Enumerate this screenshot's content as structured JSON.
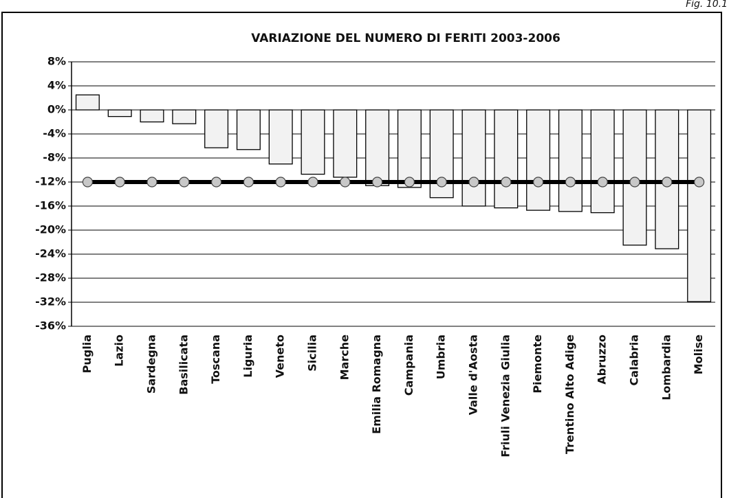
{
  "chart_data": {
    "type": "bar",
    "title": "VARIAZIONE DEL NUMERO DI FERITI 2003-2006",
    "figure_label": "Fig. 10.1",
    "categories": [
      "Puglia",
      "Lazio",
      "Sardegna",
      "Basilicata",
      "Toscana",
      "Liguria",
      "Veneto",
      "Sicilia",
      "Marche",
      "Emilia Romagna",
      "Campania",
      "Umbria",
      "Valle d'Aosta",
      "Friuli Venezia Giulia",
      "Piemonte",
      "Trentino Alto Adige",
      "Abruzzo",
      "Calabria",
      "Lombardia",
      "Molise"
    ],
    "series": [
      {
        "type": "bar",
        "color": "#f2f2f2",
        "values": [
          2.5,
          -1.1,
          -2.0,
          -2.3,
          -6.3,
          -6.6,
          -9.0,
          -10.7,
          -11.2,
          -12.6,
          -12.9,
          -14.6,
          -16.0,
          -16.3,
          -16.7,
          -16.9,
          -17.1,
          -22.5,
          -23.1,
          -31.9
        ]
      },
      {
        "type": "line",
        "color": "#000000",
        "values": [
          -12,
          -12,
          -12,
          -12,
          -12,
          -12,
          -12,
          -12,
          -12,
          -12,
          -12,
          -12,
          -12,
          -12,
          -12,
          -12,
          -12,
          -12,
          -12,
          -12
        ]
      }
    ],
    "ylim": [
      -36,
      8
    ],
    "yticks": [
      {
        "value": -36,
        "label": "-36%"
      },
      {
        "value": -32,
        "label": "-32%"
      },
      {
        "value": -28,
        "label": "-28%"
      },
      {
        "value": -24,
        "label": "-24%"
      },
      {
        "value": -20,
        "label": "-20%"
      },
      {
        "value": -16,
        "label": "-16%"
      },
      {
        "value": -12,
        "label": "-12%"
      },
      {
        "value": -8,
        "label": "-8%"
      },
      {
        "value": -4,
        "label": "-4%"
      },
      {
        "value": 0,
        "label": "0%"
      },
      {
        "value": 4,
        "label": "4%"
      },
      {
        "value": 8,
        "label": "8%"
      }
    ],
    "grid": true
  }
}
